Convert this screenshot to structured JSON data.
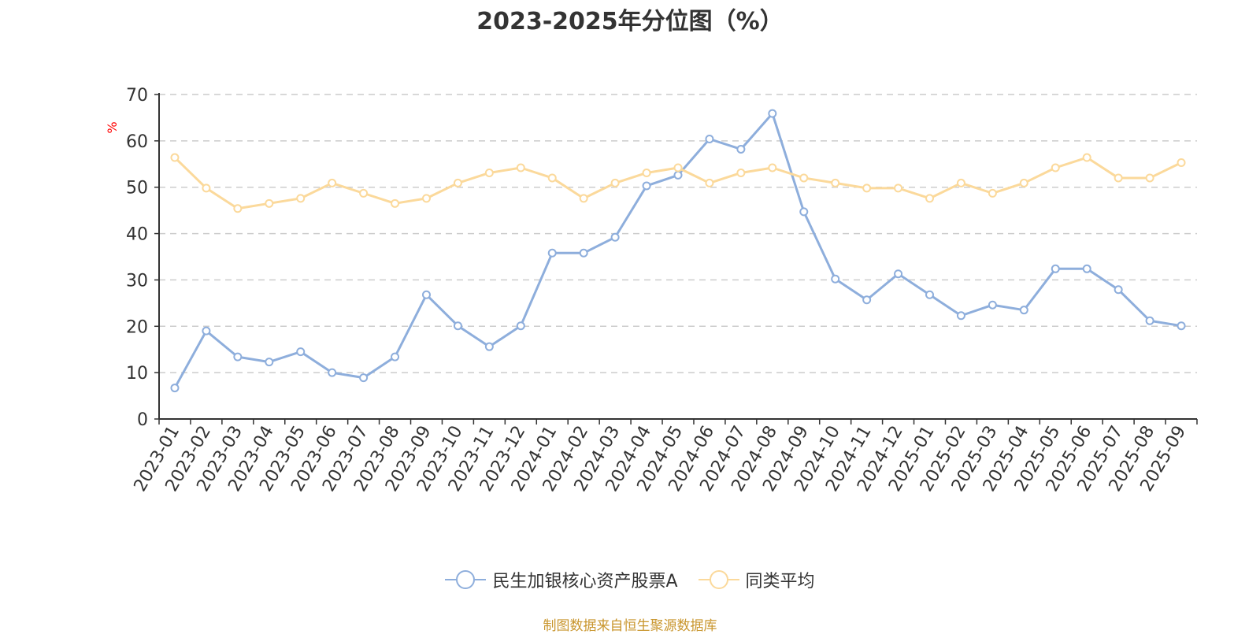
{
  "source_note": "制图数据来自恒生聚源数据库",
  "colors": {
    "fund": "#8eaedc",
    "avg": "#fbd99b",
    "source": "#c9962e",
    "unit": "#ff0000"
  },
  "chart_data": {
    "type": "line",
    "title": "2023-2025年分位图（%）",
    "ylabel": "%",
    "xlabel": "",
    "ylim": [
      0,
      70
    ],
    "yticks": [
      0,
      10,
      20,
      30,
      40,
      50,
      60,
      70
    ],
    "grid": true,
    "legend_position": "bottom",
    "categories": [
      "2023-01",
      "2023-02",
      "2023-03",
      "2023-04",
      "2023-05",
      "2023-06",
      "2023-07",
      "2023-08",
      "2023-09",
      "2023-10",
      "2023-11",
      "2023-12",
      "2024-01",
      "2024-02",
      "2024-03",
      "2024-04",
      "2024-05",
      "2024-06",
      "2024-07",
      "2024-08",
      "2024-09",
      "2024-10",
      "2024-11",
      "2024-12",
      "2025-01",
      "2025-02",
      "2025-03",
      "2025-04",
      "2025-05",
      "2025-06",
      "2025-07",
      "2025-08",
      "2025-09"
    ],
    "series": [
      {
        "name": "民生加银核心资产股票A",
        "values": [
          6.7,
          19.0,
          13.4,
          12.3,
          14.5,
          10.0,
          8.9,
          13.4,
          26.8,
          20.1,
          15.6,
          20.1,
          35.8,
          35.8,
          39.2,
          50.3,
          52.6,
          60.4,
          58.2,
          65.9,
          44.7,
          30.2,
          25.7,
          31.3,
          26.8,
          22.3,
          24.6,
          23.5,
          32.4,
          32.4,
          27.9,
          21.2,
          20.1
        ]
      },
      {
        "name": "同类平均",
        "values": [
          56.4,
          49.8,
          45.4,
          46.5,
          47.6,
          50.9,
          48.7,
          46.5,
          47.6,
          50.9,
          53.1,
          54.2,
          52.0,
          47.6,
          50.9,
          53.1,
          54.2,
          50.9,
          53.1,
          54.2,
          52.0,
          50.9,
          49.8,
          49.8,
          47.6,
          50.9,
          48.7,
          50.9,
          54.2,
          56.4,
          52.0,
          52.0,
          55.3
        ]
      }
    ]
  }
}
